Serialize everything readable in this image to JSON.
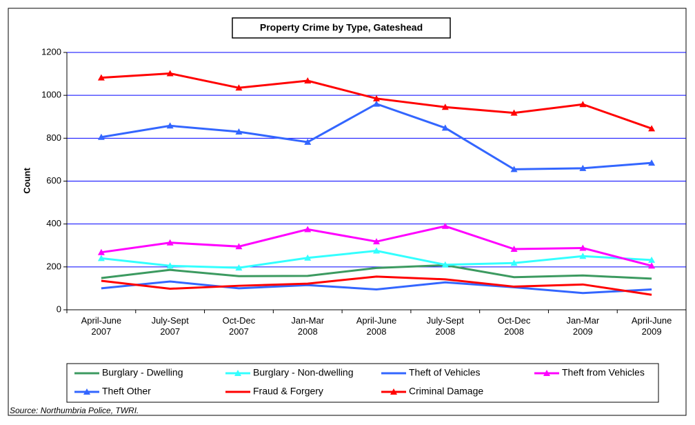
{
  "chart_data": {
    "type": "line",
    "title": "Property Crime by Type, Gateshead",
    "ylabel": "Count",
    "source": "Source: Northumbria Police, TWRI.",
    "categories": [
      "April-June 2007",
      "July-Sept 2007",
      "Oct-Dec 2007",
      "Jan-Mar 2008",
      "April-June 2008",
      "July-Sept 2008",
      "Oct-Dec 2008",
      "Jan-Mar 2009",
      "April-June 2009"
    ],
    "ylim": [
      0,
      1200
    ],
    "yticks": [
      0,
      200,
      400,
      600,
      800,
      1000,
      1200
    ],
    "grid": true,
    "series": [
      {
        "name": "Burglary - Dwelling",
        "color": "#3c9a60",
        "markers": false,
        "values": [
          148,
          186,
          157,
          158,
          195,
          208,
          152,
          160,
          145
        ]
      },
      {
        "name": "Burglary - Non-dwelling",
        "color": "#33ffff",
        "markers": true,
        "values": [
          240,
          205,
          196,
          242,
          275,
          210,
          218,
          250,
          232
        ]
      },
      {
        "name": "Theft of Vehicles",
        "color": "#3366ff",
        "markers": false,
        "values": [
          100,
          132,
          100,
          115,
          95,
          128,
          105,
          78,
          95
        ]
      },
      {
        "name": "Theft from Vehicles",
        "color": "#ff00ff",
        "markers": true,
        "values": [
          268,
          313,
          295,
          375,
          318,
          390,
          283,
          288,
          205
        ]
      },
      {
        "name": "Theft Other",
        "color": "#3366ff",
        "markers": true,
        "values": [
          805,
          858,
          830,
          782,
          960,
          848,
          655,
          660,
          685
        ]
      },
      {
        "name": "Fraud & Forgery",
        "color": "#ff0000",
        "markers": false,
        "values": [
          135,
          98,
          112,
          122,
          155,
          142,
          108,
          118,
          70
        ]
      },
      {
        "name": "Criminal Damage",
        "color": "#ff0000",
        "markers": true,
        "values": [
          1082,
          1102,
          1035,
          1068,
          985,
          945,
          918,
          958,
          845
        ]
      }
    ]
  }
}
